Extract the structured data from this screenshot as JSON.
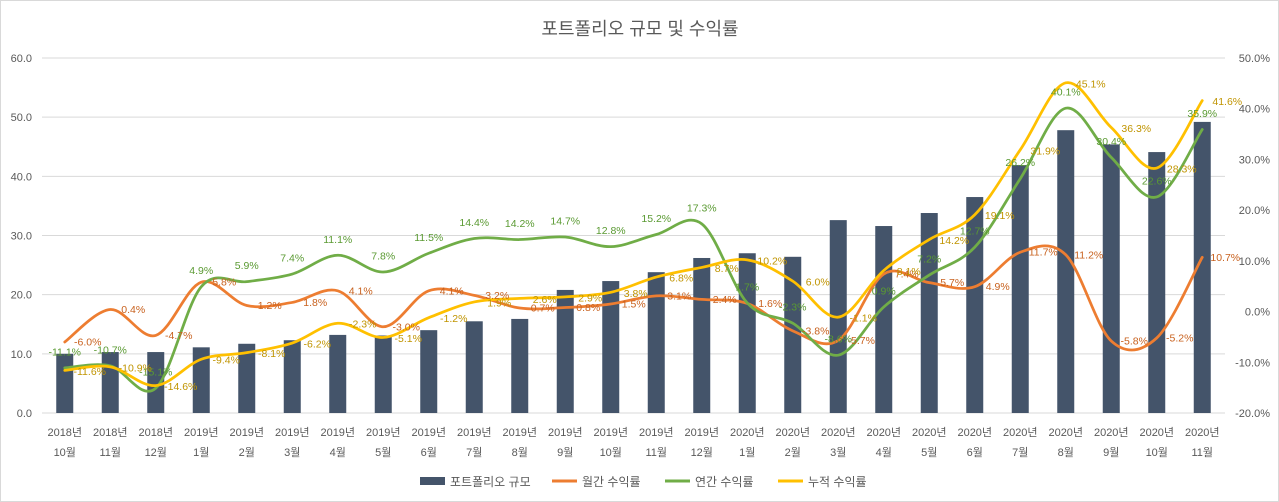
{
  "chart_data": {
    "type": "bar",
    "title": "포트폴리오 규모 및 수익률",
    "categories": [
      {
        "year": "2018년",
        "month": "10월"
      },
      {
        "year": "2018년",
        "month": "11월"
      },
      {
        "year": "2018년",
        "month": "12월"
      },
      {
        "year": "2019년",
        "month": "1월"
      },
      {
        "year": "2019년",
        "month": "2월"
      },
      {
        "year": "2019년",
        "month": "3월"
      },
      {
        "year": "2019년",
        "month": "4월"
      },
      {
        "year": "2019년",
        "month": "5월"
      },
      {
        "year": "2019년",
        "month": "6월"
      },
      {
        "year": "2019년",
        "month": "7월"
      },
      {
        "year": "2019년",
        "month": "8월"
      },
      {
        "year": "2019년",
        "month": "9월"
      },
      {
        "year": "2019년",
        "month": "10월"
      },
      {
        "year": "2019년",
        "month": "11월"
      },
      {
        "year": "2019년",
        "month": "12월"
      },
      {
        "year": "2020년",
        "month": "1월"
      },
      {
        "year": "2020년",
        "month": "2월"
      },
      {
        "year": "2020년",
        "month": "3월"
      },
      {
        "year": "2020년",
        "month": "4월"
      },
      {
        "year": "2020년",
        "month": "5월"
      },
      {
        "year": "2020년",
        "month": "6월"
      },
      {
        "year": "2020년",
        "month": "7월"
      },
      {
        "year": "2020년",
        "month": "8월"
      },
      {
        "year": "2020년",
        "month": "9월"
      },
      {
        "year": "2020년",
        "month": "10월"
      },
      {
        "year": "2020년",
        "month": "11월"
      }
    ],
    "series": [
      {
        "name": "포트폴리오 규모",
        "type": "bar",
        "axis": "left",
        "color": "#44546A",
        "values": [
          10.0,
          10.3,
          10.3,
          11.1,
          11.7,
          12.3,
          13.2,
          13.1,
          14.0,
          15.5,
          15.9,
          20.8,
          22.3,
          23.8,
          26.2,
          27.0,
          26.4,
          32.6,
          31.6,
          33.8,
          36.5,
          41.9,
          47.8,
          45.4,
          44.1,
          49.2
        ]
      },
      {
        "name": "월간 수익률",
        "type": "line",
        "axis": "right",
        "unit": "%",
        "color": "#ED7D31",
        "label_color": "#C8611E",
        "label_position": "right",
        "values": [
          -6.0,
          0.4,
          -4.7,
          5.8,
          1.2,
          1.8,
          4.1,
          -3.0,
          4.1,
          3.2,
          0.7,
          0.8,
          1.5,
          3.1,
          2.4,
          1.6,
          -3.8,
          -5.7,
          7.4,
          5.7,
          4.9,
          11.7,
          11.2,
          -5.8,
          -5.2,
          10.7
        ]
      },
      {
        "name": "연간 수익률",
        "type": "line",
        "axis": "right",
        "unit": "%",
        "color": "#70AD47",
        "label_color": "#5A9A32",
        "label_position": "above",
        "values": [
          -11.1,
          -10.7,
          -15.1,
          4.9,
          5.9,
          7.4,
          11.1,
          7.8,
          11.5,
          14.4,
          14.2,
          14.7,
          12.8,
          15.2,
          17.3,
          1.7,
          -2.3,
          -8.6,
          0.9,
          7.2,
          12.7,
          26.2,
          40.1,
          30.4,
          22.6,
          35.9
        ]
      },
      {
        "name": "누적 수익률",
        "type": "line",
        "axis": "right",
        "unit": "%",
        "color": "#FFC000",
        "label_color": "#C09400",
        "label_position": "right",
        "values": [
          -11.6,
          -10.9,
          -14.6,
          -9.4,
          -8.1,
          -6.2,
          -2.3,
          -5.1,
          -1.2,
          1.9,
          2.6,
          2.9,
          3.8,
          6.8,
          8.7,
          10.2,
          6.0,
          -1.1,
          8.1,
          14.2,
          19.1,
          31.9,
          45.1,
          36.3,
          28.3,
          41.6
        ]
      }
    ],
    "y_left": {
      "min": 0,
      "max": 60,
      "ticks": [
        "0.0",
        "10.0",
        "20.0",
        "30.0",
        "40.0",
        "50.0",
        "60.0"
      ]
    },
    "y_right": {
      "min": -20,
      "max": 50,
      "ticks": [
        "-20.0%",
        "-10.0%",
        "0.0%",
        "10.0%",
        "20.0%",
        "30.0%",
        "40.0%",
        "50.0%"
      ]
    },
    "xlabel": "",
    "ylabel": "",
    "grid": true,
    "legend": "bottom-center"
  }
}
